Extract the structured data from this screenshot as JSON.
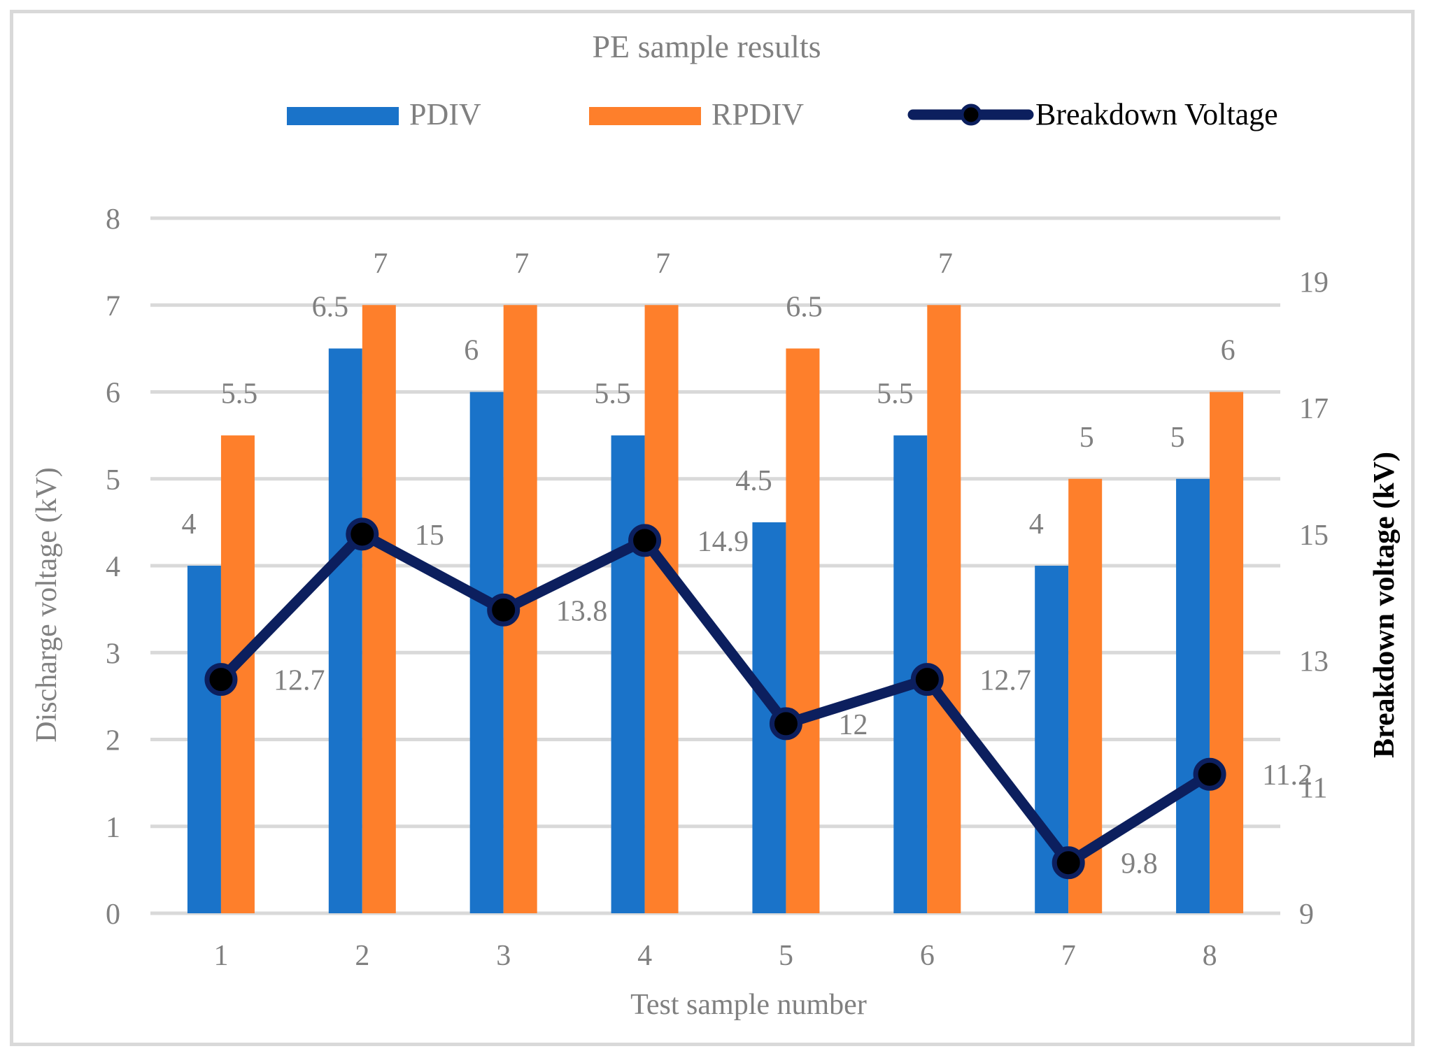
{
  "chart_data": {
    "type": "bar",
    "title": "PE sample results",
    "xlabel": "Test sample number",
    "ylabel": "Discharge voltage (kV)",
    "y2label": "Breakdown voltage (kV)",
    "categories": [
      "1",
      "2",
      "3",
      "4",
      "5",
      "6",
      "7",
      "8"
    ],
    "ylim": [
      0,
      8
    ],
    "yticks": [
      0,
      1,
      2,
      3,
      4,
      5,
      6,
      7,
      8
    ],
    "y2lim": [
      9,
      20
    ],
    "y2ticks": [
      9,
      11,
      13,
      15,
      17,
      19
    ],
    "grid": true,
    "legend_position": "top",
    "series": [
      {
        "name": "PDIV",
        "type": "bar",
        "axis": "left",
        "color": "#1a73c9",
        "values": [
          4,
          6.5,
          6,
          5.5,
          4.5,
          5.5,
          4,
          5
        ],
        "labels": [
          "4",
          "6.5",
          "6",
          "5.5",
          "4.5",
          "5.5",
          "4",
          "5"
        ]
      },
      {
        "name": "RPDIV",
        "type": "bar",
        "axis": "left",
        "color": "#fe7f2b",
        "values": [
          5.5,
          7,
          7,
          7,
          6.5,
          7,
          5,
          6
        ],
        "labels": [
          "5.5",
          "7",
          "7",
          "7",
          "6.5",
          "7",
          "5",
          "6"
        ]
      },
      {
        "name": "Breakdown Voltage",
        "type": "line",
        "axis": "right",
        "color": "#0c1f5e",
        "marker_color": "#000000",
        "values": [
          12.7,
          15,
          13.8,
          14.9,
          12,
          12.7,
          9.8,
          11.2
        ],
        "labels": [
          "12.7",
          "15",
          "13.8",
          "14.9",
          "12",
          "12.7",
          "9.8",
          "11.2"
        ]
      }
    ]
  }
}
